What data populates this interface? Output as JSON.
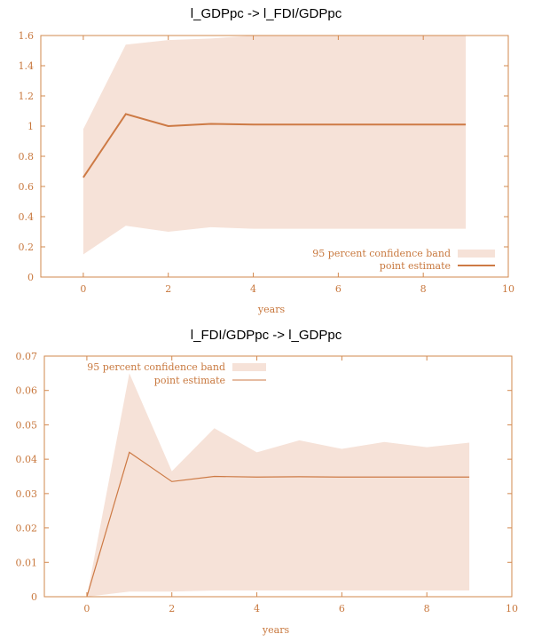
{
  "colors": {
    "axis": "#d2884e",
    "band": "#f6e2d8",
    "line": "#cd7a45",
    "text": "#c8783e",
    "title": "#000000"
  },
  "chart_data": [
    {
      "type": "line",
      "title": "l_GDPpc -> l_FDI/GDPpc",
      "xlabel": "years",
      "ylabel": "",
      "xlim": [
        -1,
        10
      ],
      "ylim": [
        0,
        1.6
      ],
      "xticks": [
        "0",
        "2",
        "4",
        "6",
        "8",
        "10"
      ],
      "yticks": [
        "0",
        "0.2",
        "0.4",
        "0.6",
        "0.8",
        "1",
        "1.2",
        "1.4",
        "1.6"
      ],
      "x": [
        0,
        1,
        2,
        3,
        4,
        5,
        6,
        7,
        8,
        9
      ],
      "series": [
        {
          "name": "95 percent confidence band",
          "kind": "band",
          "lower": [
            0.15,
            0.34,
            0.3,
            0.33,
            0.32,
            0.32,
            0.32,
            0.32,
            0.32,
            0.32
          ],
          "upper": [
            0.98,
            1.54,
            1.57,
            1.58,
            1.6,
            1.6,
            1.6,
            1.6,
            1.6,
            1.6
          ]
        },
        {
          "name": "point estimate",
          "kind": "line",
          "values": [
            0.66,
            1.08,
            1.0,
            1.015,
            1.01,
            1.01,
            1.01,
            1.01,
            1.01,
            1.01
          ]
        }
      ],
      "legend": "bottom-right"
    },
    {
      "type": "line",
      "title": "l_FDI/GDPpc -> l_GDPpc",
      "xlabel": "years",
      "ylabel": "",
      "xlim": [
        -1,
        10
      ],
      "ylim": [
        0,
        0.07
      ],
      "xticks": [
        "0",
        "2",
        "4",
        "6",
        "8",
        "10"
      ],
      "yticks": [
        "0",
        "0.01",
        "0.02",
        "0.03",
        "0.04",
        "0.05",
        "0.06",
        "0.07"
      ],
      "x": [
        0,
        1,
        2,
        3,
        4,
        5,
        6,
        7,
        8,
        9
      ],
      "series": [
        {
          "name": "95 percent confidence band",
          "kind": "band",
          "lower": [
            0.0,
            0.0015,
            0.0015,
            0.0018,
            0.0018,
            0.0018,
            0.0018,
            0.0018,
            0.0018,
            0.0018
          ],
          "upper": [
            0.0,
            0.065,
            0.0365,
            0.049,
            0.042,
            0.0455,
            0.043,
            0.045,
            0.0435,
            0.0448
          ]
        },
        {
          "name": "point estimate",
          "kind": "line",
          "values": [
            0.0,
            0.042,
            0.0335,
            0.035,
            0.0348,
            0.0349,
            0.0348,
            0.0348,
            0.0348,
            0.0348
          ]
        }
      ],
      "legend": "top-left"
    }
  ]
}
